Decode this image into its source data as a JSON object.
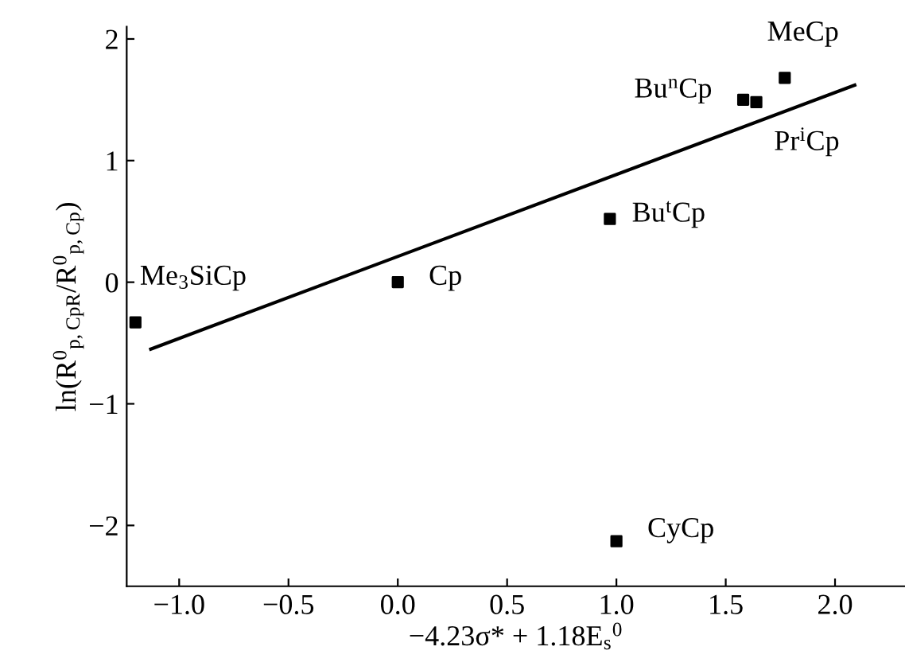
{
  "chart_data": {
    "type": "scatter",
    "xlabel": "−4.23σ* + 1.18E$_{s}$$^{0}$",
    "ylabel": "ln(R$^{0}$$_{p,CpR}$/R$^{0}$$_{p,Cp}$)",
    "xlim": [
      -1.24,
      2.32
    ],
    "ylim": [
      -2.5,
      2.1
    ],
    "xticks": [
      {
        "value": -1.0,
        "label": "−1.0"
      },
      {
        "value": -0.5,
        "label": "−0.5"
      },
      {
        "value": 0.0,
        "label": "0.0"
      },
      {
        "value": 0.5,
        "label": "0.5"
      },
      {
        "value": 1.0,
        "label": "1.0"
      },
      {
        "value": 1.5,
        "label": "1.5"
      },
      {
        "value": 2.0,
        "label": "2.0"
      }
    ],
    "yticks": [
      {
        "value": -2,
        "label": "−2"
      },
      {
        "value": -1,
        "label": "−1"
      },
      0,
      1,
      2
    ],
    "grid": false,
    "series": [
      {
        "color": "#000000",
        "marker": "square",
        "x": [
          -1.2,
          0.0,
          0.97,
          1.0,
          1.58,
          1.64,
          1.77
        ],
        "values": [
          -0.33,
          0.0,
          0.52,
          -2.13,
          1.5,
          1.48,
          1.68
        ]
      },
      {
        "type": "line",
        "color": "#000000",
        "marker": "none",
        "line_style": "solid",
        "x": [
          -1.13,
          2.09
        ],
        "values": [
          -0.55,
          1.62
        ]
      }
    ],
    "annotations": [
      {
        "text": "Me$_{3}$SiCp",
        "x": -1.2,
        "y": -0.33
      },
      {
        "text": "Cp",
        "x": 0.0,
        "y": 0.0
      },
      {
        "text": "Bu$^{t}$Cp",
        "x": 0.97,
        "y": 0.52
      },
      {
        "text": "CyCp",
        "x": 1.0,
        "y": -2.13
      },
      {
        "text": "Bu$^{n}$Cp",
        "x": 1.58,
        "y": 1.5
      },
      {
        "text": "Pr$^{i}$Cp",
        "x": 1.64,
        "y": 1.48
      },
      {
        "text": "MeCp",
        "x": 1.77,
        "y": 1.68
      }
    ]
  }
}
